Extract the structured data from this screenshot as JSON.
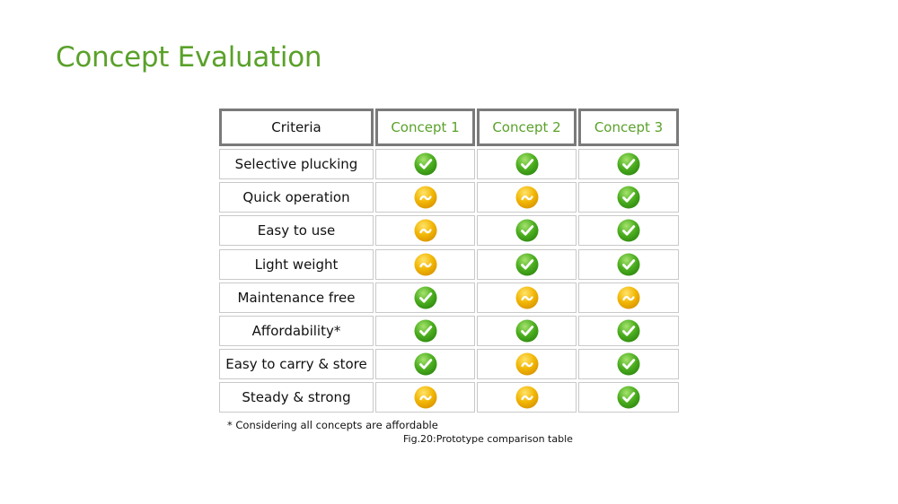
{
  "slide": {
    "title": "Concept Evaluation"
  },
  "table": {
    "headers": [
      "Criteria",
      "Concept 1",
      "Concept 2",
      "Concept 3"
    ],
    "rows": [
      {
        "criterion": "Selective plucking",
        "ratings": [
          "check",
          "check",
          "check"
        ]
      },
      {
        "criterion": "Quick operation",
        "ratings": [
          "partial",
          "partial",
          "check"
        ]
      },
      {
        "criterion": "Easy to use",
        "ratings": [
          "partial",
          "check",
          "check"
        ]
      },
      {
        "criterion": "Light weight",
        "ratings": [
          "partial",
          "check",
          "check"
        ]
      },
      {
        "criterion": "Maintenance free",
        "ratings": [
          "check",
          "partial",
          "partial"
        ]
      },
      {
        "criterion": "Affordability*",
        "ratings": [
          "check",
          "check",
          "check"
        ]
      },
      {
        "criterion": "Easy to carry & store",
        "ratings": [
          "check",
          "partial",
          "check"
        ]
      },
      {
        "criterion": "Steady & strong",
        "ratings": [
          "partial",
          "partial",
          "check"
        ]
      }
    ],
    "rating_icons": {
      "check": "check-mark-icon",
      "partial": "tilde-mark-icon"
    },
    "colors": {
      "check": "#4cae1f",
      "partial": "#f2b705",
      "accent": "#5aa12a",
      "header_border": "#7a7a7a"
    }
  },
  "footnote": "* Considering all concepts are affordable",
  "caption": "Fig.20:Prototype comparison table"
}
